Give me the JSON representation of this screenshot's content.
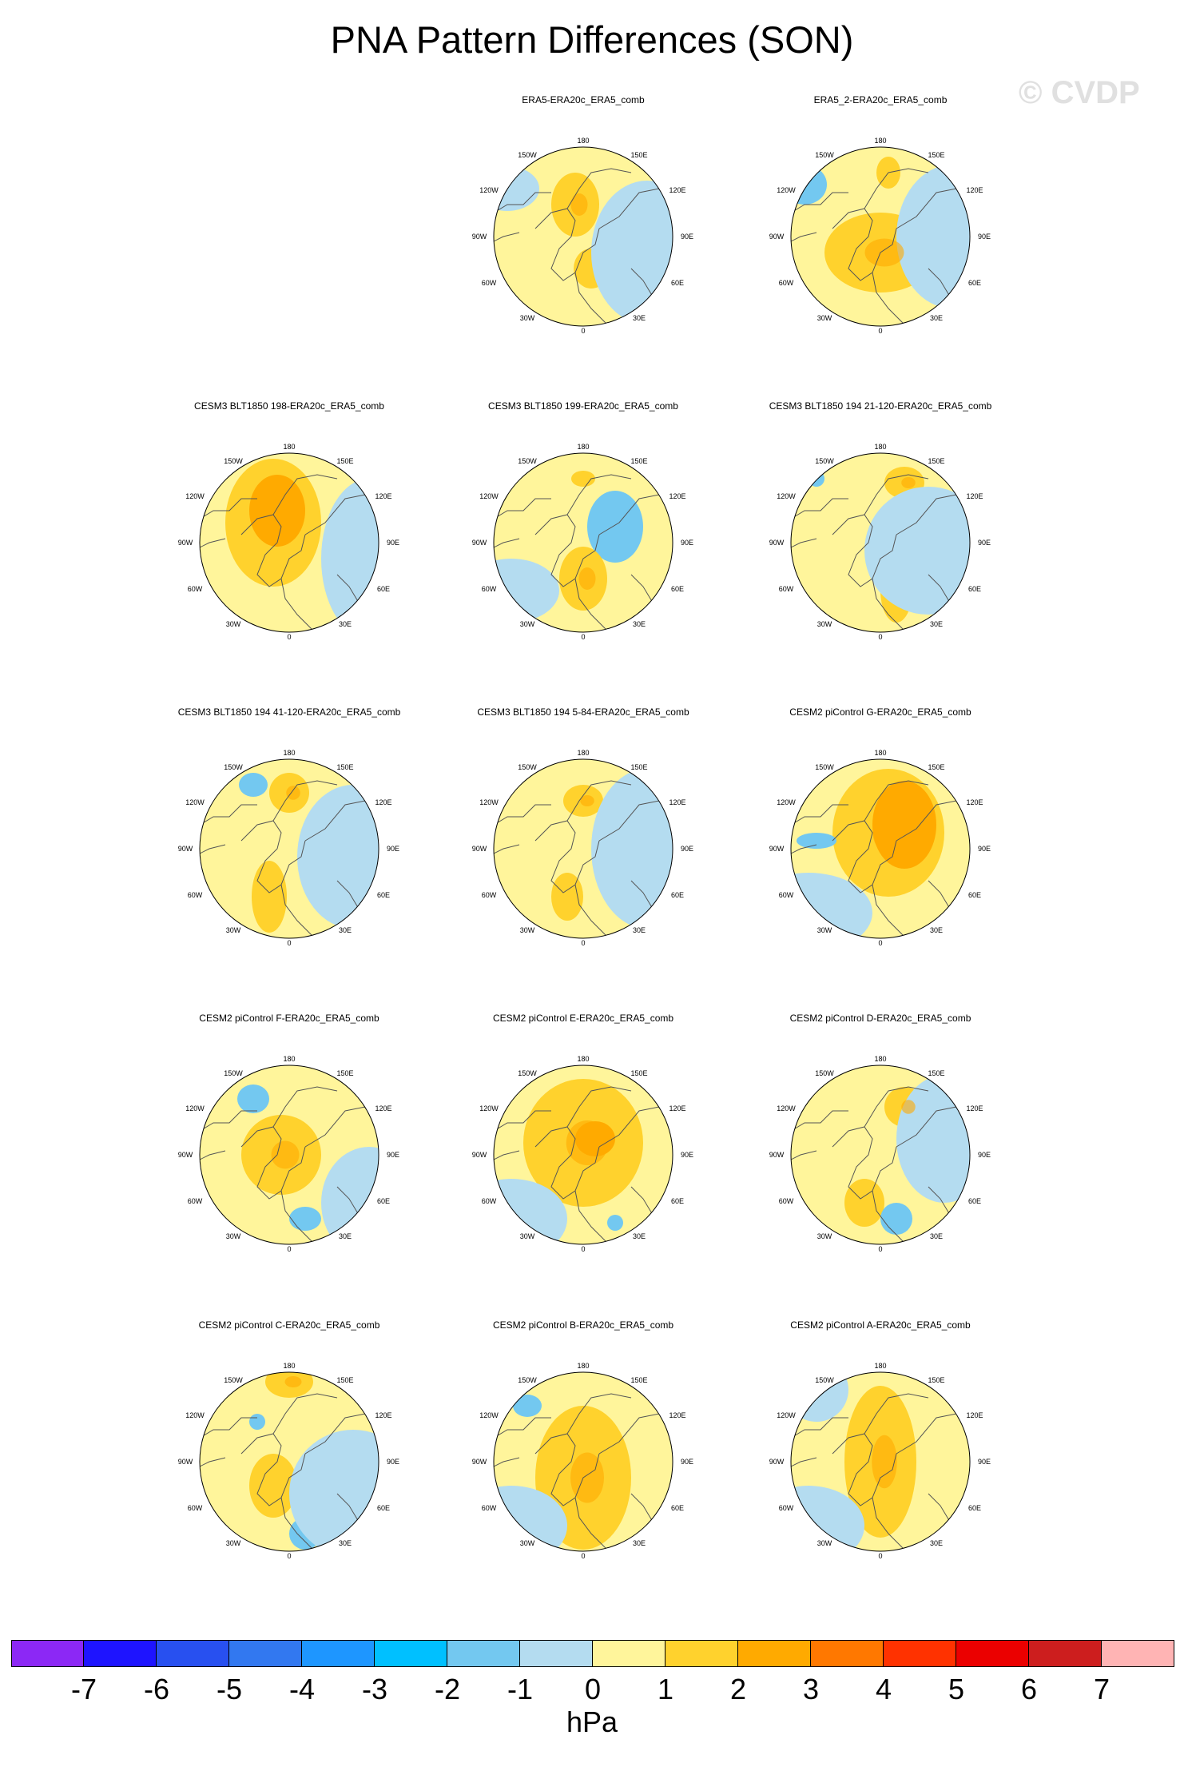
{
  "title": "PNA Pattern Differences (SON)",
  "watermark": "© CVDP",
  "colors": {
    "land_outline": "#555555",
    "neg1": "#b4dcf0",
    "neg2": "#73c8f0",
    "neg3": "#3c9bf0",
    "pos1": "#fff59b",
    "pos2": "#ffd22d",
    "pos3": "#ffaa00"
  },
  "longitude_labels": [
    "180",
    "150E",
    "120E",
    "90E",
    "60E",
    "30E",
    "0",
    "30W",
    "60W",
    "90W",
    "120W",
    "150W"
  ],
  "panels": [
    {
      "title": "ERA5-ERA20c_ERA5_comb"
    },
    {
      "title": "ERA5_2-ERA20c_ERA5_comb"
    },
    {
      "title": "CESM3 BLT1850 198-ERA20c_ERA5_comb"
    },
    {
      "title": "CESM3 BLT1850 199-ERA20c_ERA5_comb"
    },
    {
      "title": "CESM3 BLT1850 194 21-120-ERA20c_ERA5_comb"
    },
    {
      "title": "CESM3 BLT1850 194 41-120-ERA20c_ERA5_comb"
    },
    {
      "title": "CESM3 BLT1850 194 5-84-ERA20c_ERA5_comb"
    },
    {
      "title": "CESM2 piControl G-ERA20c_ERA5_comb"
    },
    {
      "title": "CESM2 piControl F-ERA20c_ERA5_comb"
    },
    {
      "title": "CESM2 piControl E-ERA20c_ERA5_comb"
    },
    {
      "title": "CESM2 piControl D-ERA20c_ERA5_comb"
    },
    {
      "title": "CESM2 piControl C-ERA20c_ERA5_comb"
    },
    {
      "title": "CESM2 piControl B-ERA20c_ERA5_comb"
    },
    {
      "title": "CESM2 piControl A-ERA20c_ERA5_comb"
    }
  ],
  "colorbar": {
    "units": "hPa",
    "colors": [
      "#8c28f5",
      "#1e14ff",
      "#2850f0",
      "#3278f0",
      "#1e96ff",
      "#00c0ff",
      "#73c8f0",
      "#b4dcf0",
      "#fff59b",
      "#ffd22d",
      "#ffaa00",
      "#ff7800",
      "#ff3200",
      "#eb0000",
      "#cd1e1e",
      "#ffb4b4"
    ],
    "ticks": [
      "-7",
      "-6",
      "-5",
      "-4",
      "-3",
      "-2",
      "-1",
      "0",
      "1",
      "2",
      "3",
      "4",
      "5",
      "6",
      "7"
    ]
  }
}
